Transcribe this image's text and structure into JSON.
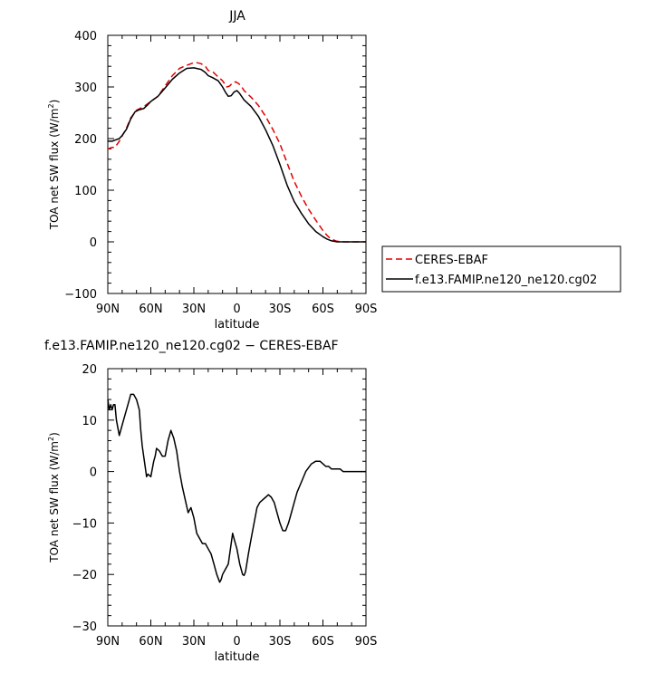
{
  "chart_data": [
    {
      "type": "line",
      "title": "JJA",
      "xlabel": "latitude",
      "ylabel": "TOA net SW flux (W/m²)",
      "ylim": [
        -100,
        400
      ],
      "xlim": [
        90,
        -90
      ],
      "yticks": [
        -100,
        0,
        100,
        200,
        300,
        400
      ],
      "xticks": [
        {
          "value": 90,
          "label": "90N"
        },
        {
          "value": 60,
          "label": "60N"
        },
        {
          "value": 30,
          "label": "30N"
        },
        {
          "value": 0,
          "label": "0"
        },
        {
          "value": -30,
          "label": "30S"
        },
        {
          "value": -60,
          "label": "60S"
        },
        {
          "value": -90,
          "label": "90S"
        }
      ],
      "grid": false,
      "legend_position": "right",
      "series": [
        {
          "name": "CERES-EBAF",
          "color": "#e00000",
          "style": "dashed",
          "x": [
            90,
            87,
            85,
            82,
            80,
            77,
            74,
            70,
            65,
            60,
            55,
            50,
            45,
            40,
            35,
            31,
            28,
            25,
            22,
            20,
            17,
            14,
            10,
            7,
            5,
            3,
            1,
            -1,
            -3,
            -5,
            -10,
            -15,
            -20,
            -25,
            -30,
            -35,
            -40,
            -45,
            -50,
            -55,
            -60,
            -63,
            -65,
            -68,
            -70,
            -75,
            -80,
            -85,
            -90
          ],
          "y": [
            180,
            183,
            183,
            195,
            205,
            220,
            240,
            255,
            262,
            272,
            282,
            302,
            322,
            336,
            342,
            346,
            347,
            345,
            340,
            332,
            330,
            322,
            312,
            300,
            302,
            308,
            310,
            307,
            302,
            293,
            280,
            264,
            243,
            218,
            190,
            153,
            117,
            88,
            63,
            42,
            22,
            12,
            7,
            3,
            1,
            0,
            0,
            0,
            0
          ]
        },
        {
          "name": "f.e13.FAMIP.ne120_ne120.cg02",
          "color": "#000000",
          "style": "solid",
          "x": [
            90,
            87,
            85,
            82,
            80,
            77,
            74,
            71,
            68,
            65,
            62,
            60,
            55,
            50,
            45,
            40,
            35,
            30,
            25,
            22,
            20,
            17,
            13,
            10,
            8,
            6,
            4,
            2,
            0,
            -2,
            -5,
            -10,
            -15,
            -20,
            -25,
            -30,
            -35,
            -40,
            -45,
            -50,
            -55,
            -60,
            -63,
            -66,
            -70,
            -75,
            -80,
            -85,
            -90
          ],
          "y": [
            195,
            195,
            197,
            200,
            206,
            218,
            238,
            252,
            256,
            258,
            266,
            272,
            282,
            298,
            315,
            327,
            336,
            337,
            334,
            328,
            322,
            318,
            312,
            300,
            290,
            282,
            283,
            290,
            293,
            287,
            275,
            262,
            243,
            217,
            187,
            150,
            110,
            78,
            55,
            35,
            20,
            10,
            5,
            2,
            0,
            0,
            0,
            0,
            0
          ]
        }
      ]
    },
    {
      "type": "line",
      "title": "f.e13.FAMIP.ne120_ne120.cg02 − CERES-EBAF",
      "xlabel": "latitude",
      "ylabel": "TOA net SW flux (W/m²)",
      "ylim": [
        -30,
        20
      ],
      "xlim": [
        90,
        -90
      ],
      "yticks": [
        -30,
        -20,
        -10,
        0,
        10,
        20
      ],
      "xticks": [
        {
          "value": 90,
          "label": "90N"
        },
        {
          "value": 60,
          "label": "60N"
        },
        {
          "value": 30,
          "label": "30N"
        },
        {
          "value": 0,
          "label": "0"
        },
        {
          "value": -30,
          "label": "30S"
        },
        {
          "value": -60,
          "label": "60S"
        },
        {
          "value": -90,
          "label": "90S"
        }
      ],
      "grid": false,
      "series": [
        {
          "color": "#000000",
          "style": "solid",
          "x": [
            90,
            89,
            88,
            87,
            86,
            85,
            84,
            82,
            80,
            78,
            76,
            75,
            74,
            73,
            72,
            70,
            68,
            67,
            66,
            65,
            64,
            63,
            62,
            60,
            58,
            57,
            56,
            54,
            52,
            50,
            48,
            46,
            44,
            42,
            40,
            38,
            36,
            34,
            32,
            30,
            28,
            26,
            24,
            22,
            20,
            18,
            16,
            14,
            12,
            11,
            10,
            8,
            6,
            4,
            3,
            2,
            0,
            -2,
            -4,
            -5,
            -6,
            -8,
            -10,
            -12,
            -14,
            -16,
            -18,
            -20,
            -22,
            -24,
            -26,
            -28,
            -30,
            -32,
            -34,
            -36,
            -38,
            -40,
            -42,
            -45,
            -48,
            -52,
            -55,
            -58,
            -60,
            -62,
            -64,
            -66,
            -68,
            -70,
            -72,
            -74,
            -76,
            -78,
            -80,
            -85,
            -90
          ],
          "y": [
            14,
            12,
            13,
            12,
            13,
            13,
            10,
            7,
            9,
            11,
            13,
            14,
            15,
            15,
            15,
            14,
            12,
            8,
            5,
            3,
            1,
            -1,
            -0.5,
            -1,
            2,
            3,
            4.5,
            4,
            3,
            3,
            6,
            8,
            6.5,
            4,
            0,
            -3,
            -5.5,
            -8,
            -7,
            -9,
            -12,
            -13,
            -14,
            -14,
            -15,
            -16,
            -18,
            -20,
            -21.5,
            -21,
            -20,
            -19,
            -18,
            -14,
            -12,
            -13,
            -15,
            -18,
            -20,
            -20.2,
            -19.5,
            -16,
            -13,
            -10,
            -7,
            -6,
            -5.5,
            -5,
            -4.5,
            -5,
            -6,
            -8,
            -10,
            -11.5,
            -11.5,
            -10,
            -8,
            -6,
            -4,
            -2,
            0,
            1.5,
            2,
            2,
            1.5,
            1,
            1,
            0.5,
            0.5,
            0.5,
            0.5,
            0,
            0,
            0,
            0,
            0,
            0
          ]
        }
      ]
    }
  ]
}
